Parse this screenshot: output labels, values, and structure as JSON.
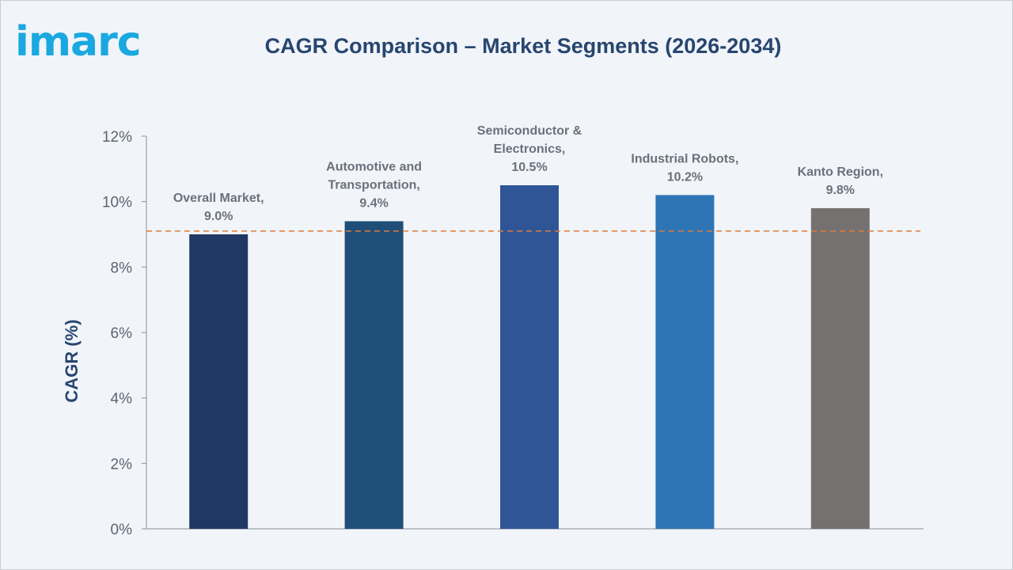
{
  "logo": {
    "text": "imarc"
  },
  "chart_data": {
    "type": "bar",
    "title": "CAGR Comparison – Market Segments (2026-2034)",
    "ylabel": "CAGR (%)",
    "xlabel": "",
    "ylim": [
      0,
      12
    ],
    "yticks": [
      0,
      2,
      4,
      6,
      8,
      10,
      12
    ],
    "ytick_labels": [
      "0%",
      "2%",
      "4%",
      "6%",
      "8%",
      "10%",
      "12%"
    ],
    "categories": [
      "Overall Market",
      "Automotive and Transportation",
      "Semiconductor & Electronics",
      "Industrial Robots",
      "Kanto Region"
    ],
    "values": [
      9.0,
      9.4,
      10.5,
      10.2,
      9.8
    ],
    "data_labels": [
      [
        "Overall Market,",
        "9.0%"
      ],
      [
        "Automotive and",
        "Transportation,",
        "9.4%"
      ],
      [
        "Semiconductor &",
        "Electronics,",
        "10.5%"
      ],
      [
        "Industrial Robots,",
        "10.2%"
      ],
      [
        "Kanto Region,",
        "9.8%"
      ]
    ],
    "bar_colors": [
      "#203864",
      "#1f4e79",
      "#2f5597",
      "#2e75b6",
      "#767171"
    ],
    "reference_line": {
      "value": 9.1,
      "style": "dashed",
      "color": "#e07b3a"
    },
    "grid": false,
    "legend": "none"
  }
}
